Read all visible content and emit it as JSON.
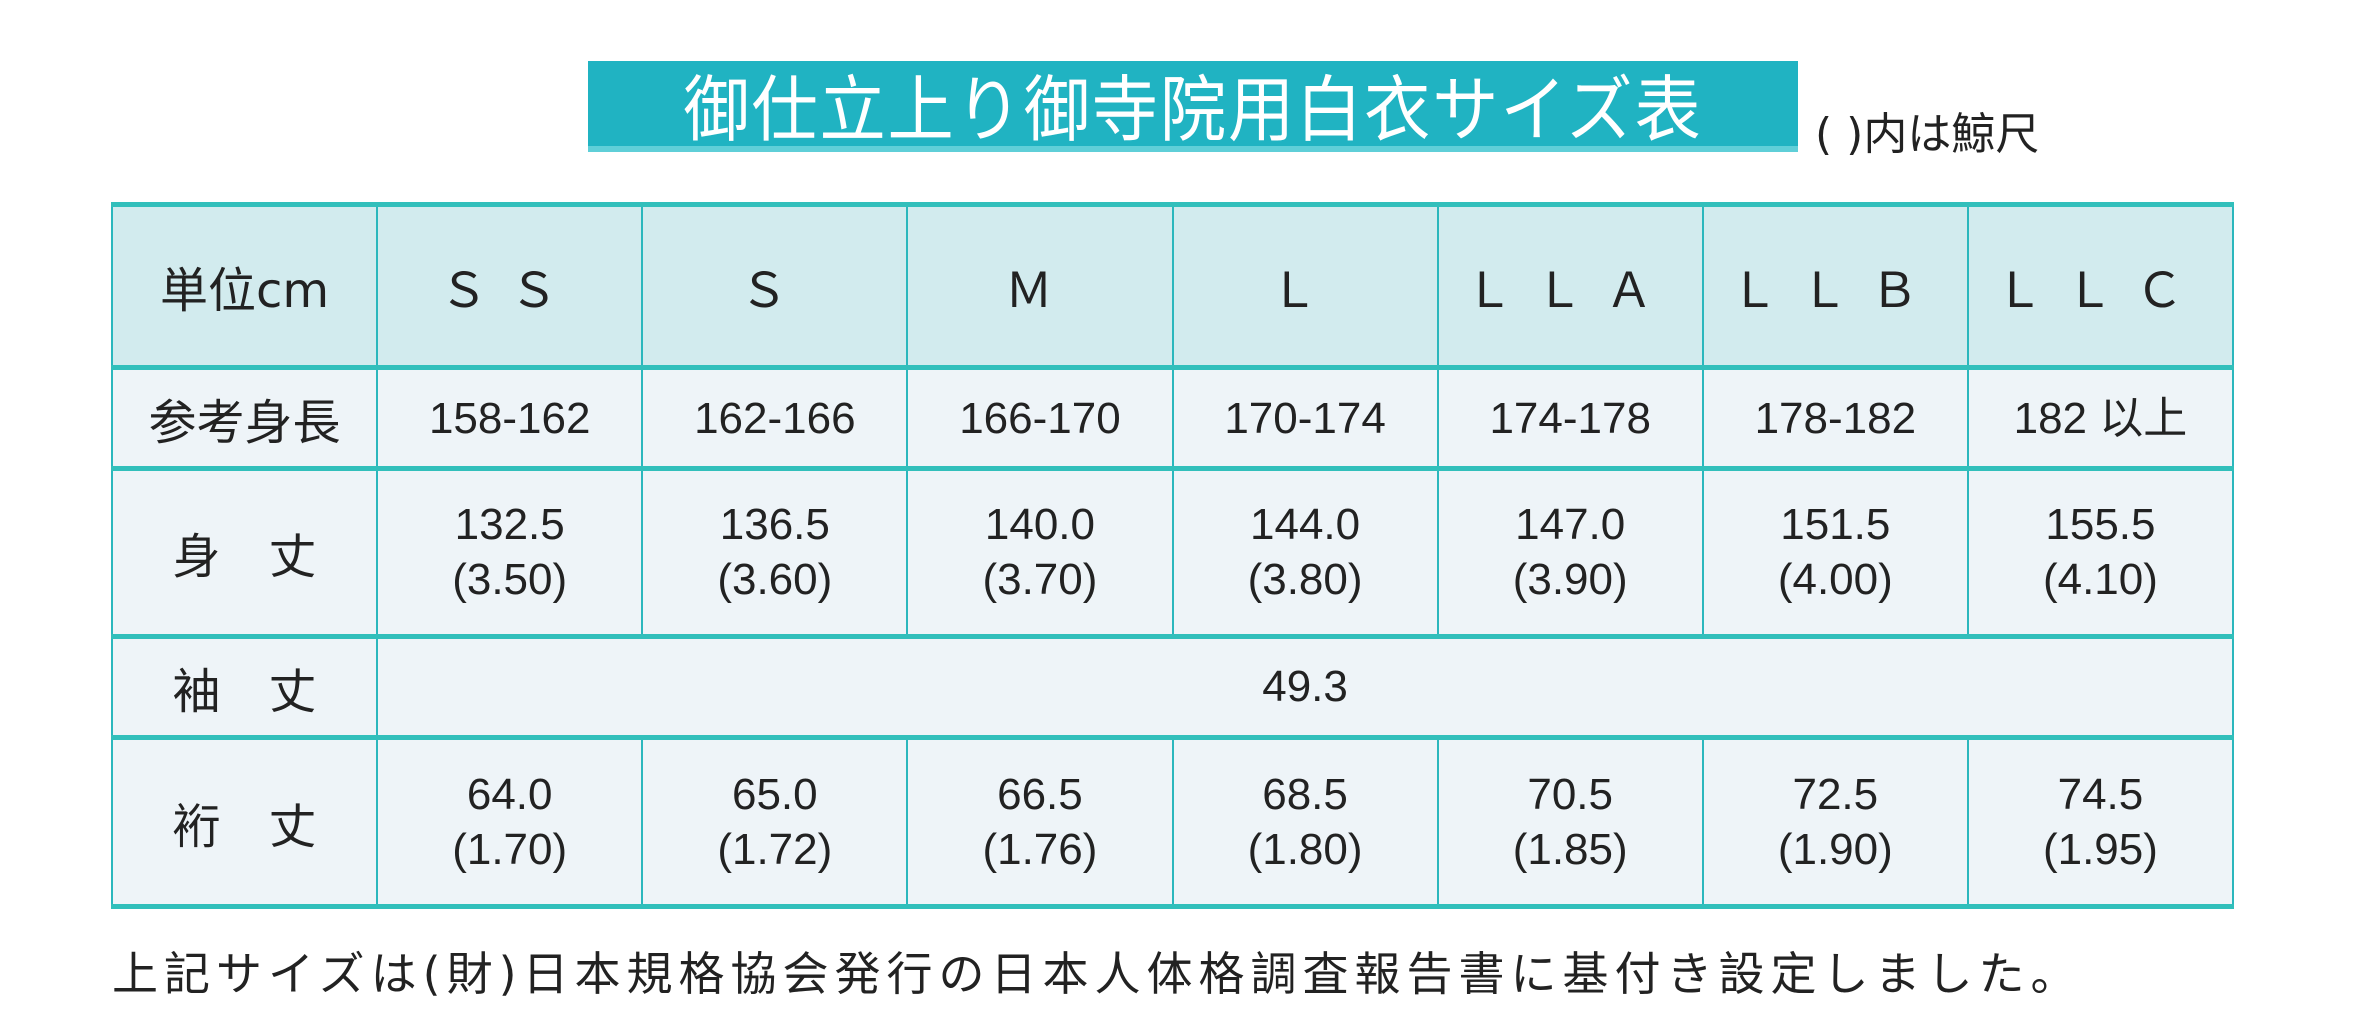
{
  "title": "御仕立上り御寺院用白衣サイズ表",
  "note": "( )内は鯨尺",
  "colors": {
    "title_bg": "#20b3c2",
    "header_bg": "#d2ebee",
    "row_bg": "#eef4f8",
    "border": "#2bb7bd"
  },
  "table": {
    "headers": [
      "単位cm",
      "ＳＳ",
      "Ｓ",
      "Ｍ",
      "Ｌ",
      "ＬＬＡ",
      "ＬＬＢ",
      "ＬＬＣ"
    ],
    "height_row": {
      "label": "参考身長",
      "values": [
        "158-162",
        "162-166",
        "166-170",
        "170-174",
        "174-178",
        "178-182",
        "182 以上"
      ]
    },
    "body_length_row": {
      "label": "身　丈",
      "values": [
        {
          "cm": "132.5",
          "kujira": "(3.50)"
        },
        {
          "cm": "136.5",
          "kujira": "(3.60)"
        },
        {
          "cm": "140.0",
          "kujira": "(3.70)"
        },
        {
          "cm": "144.0",
          "kujira": "(3.80)"
        },
        {
          "cm": "147.0",
          "kujira": "(3.90)"
        },
        {
          "cm": "151.5",
          "kujira": "(4.00)"
        },
        {
          "cm": "155.5",
          "kujira": "(4.10)"
        }
      ]
    },
    "sleeve_length_row": {
      "label": "袖　丈",
      "value": "49.3"
    },
    "yuki_row": {
      "label": "裄　丈",
      "values": [
        {
          "cm": "64.0",
          "kujira": "(1.70)"
        },
        {
          "cm": "65.0",
          "kujira": "(1.72)"
        },
        {
          "cm": "66.5",
          "kujira": "(1.76)"
        },
        {
          "cm": "68.5",
          "kujira": "(1.80)"
        },
        {
          "cm": "70.5",
          "kujira": "(1.85)"
        },
        {
          "cm": "72.5",
          "kujira": "(1.90)"
        },
        {
          "cm": "74.5",
          "kujira": "(1.95)"
        }
      ]
    }
  },
  "footer": "上記サイズは(財)日本規格協会発行の日本人体格調査報告書に基付き設定しました。"
}
